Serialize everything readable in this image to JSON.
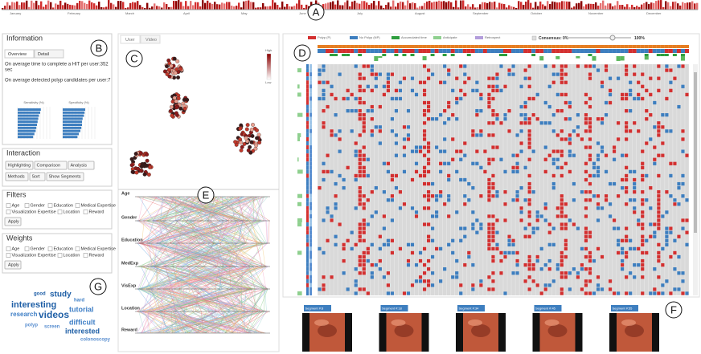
{
  "timeline": {
    "label": "A",
    "months": [
      "January",
      "February",
      "March",
      "April",
      "May",
      "June",
      "July",
      "August",
      "September",
      "October",
      "November",
      "December"
    ]
  },
  "information": {
    "label": "B",
    "title": "Information",
    "tabs": [
      "Overview",
      "Detail"
    ],
    "lines": [
      "On average time to complete a HIT per user:352",
      "sec",
      "On average detected polyp candidates per user:7"
    ],
    "sensitivity": {
      "title": "Sensitivity (%)",
      "values": [
        72,
        70,
        66,
        64,
        62,
        60,
        58,
        56,
        52,
        48
      ]
    },
    "specificity": {
      "title": "Specificity (%)",
      "values": [
        70,
        68,
        66,
        62,
        60,
        60,
        58,
        55,
        50,
        46
      ]
    }
  },
  "interaction": {
    "title": "Interaction",
    "buttons": [
      "Highlighting",
      "Comparison",
      "Analysis",
      "Methods",
      "Sort",
      "Show Segments"
    ]
  },
  "filters": {
    "title": "Filters",
    "options": [
      "Age",
      "Gender",
      "Education",
      "Medical Expertise",
      "Visualization Expertise",
      "Location",
      "Reward"
    ],
    "apply": "Apply"
  },
  "weights": {
    "title": "Weights",
    "options": [
      "Age",
      "Gender",
      "Education",
      "Medical Expertise",
      "Visualization Expertise",
      "Location",
      "Reward"
    ],
    "apply": "Apply"
  },
  "word_cloud": {
    "label": "G",
    "words": [
      "good",
      "study",
      "hard",
      "interesting",
      "tutorial",
      "research",
      "videos",
      "difficult",
      "polyp",
      "screen",
      "interested",
      "colonoscopy"
    ]
  },
  "user_view": {
    "label": "C",
    "tabs": [
      "User",
      "Video"
    ],
    "legend_high": "High",
    "legend_low": "Low"
  },
  "parallel": {
    "label": "E",
    "axes": [
      "Age",
      "Gender",
      "Education",
      "MedExp",
      "VisExp",
      "Location",
      "Reward"
    ]
  },
  "matrix": {
    "label": "D",
    "legend": [
      "Polyp (P)",
      "No Polyp (NP)",
      "Accumulated time",
      "Anticipate",
      "Retrospect"
    ],
    "consensus_min": "Consensus: 0%",
    "consensus_max": "100%"
  },
  "segments": {
    "label": "F",
    "items": [
      "Segment #:8",
      "Segment #:18",
      "Segment #:34",
      "Segment #:45",
      "Segment #:55"
    ]
  }
}
